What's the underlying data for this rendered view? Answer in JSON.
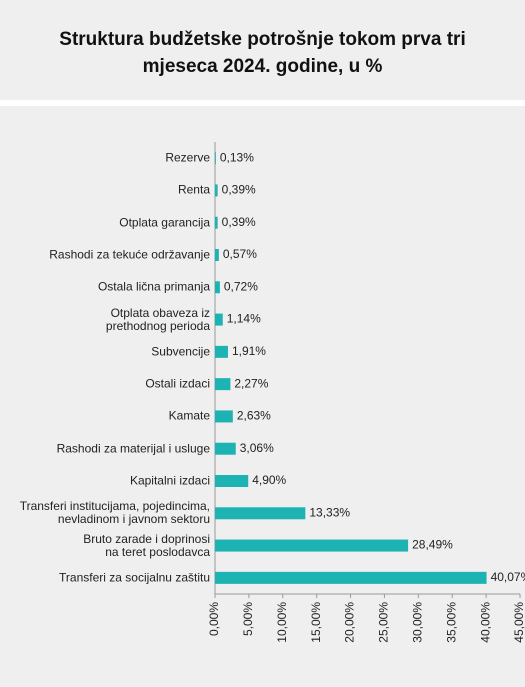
{
  "chart_data": {
    "type": "bar",
    "orientation": "horizontal",
    "title": "Struktura budžetske potrošnje tokom prva tri mjeseca 2024. godine, u %",
    "categories": [
      "Rezerve",
      "Renta",
      "Otplata garancija",
      "Rashodi za tekuće održavanje",
      "Ostala lična primanja",
      "Otplata obaveza iz\nprethodnog perioda",
      "Subvencije",
      "Ostali izdaci",
      "Kamate",
      "Rashodi za materijal i usluge",
      "Kapitalni izdaci",
      "Transferi institucijama, pojedincima,\nnevladinom i javnom sektoru",
      "Bruto zarade i doprinosi\nna teret poslodavca",
      "Transferi za socijalnu zaštitu"
    ],
    "values": [
      0.13,
      0.39,
      0.39,
      0.57,
      0.72,
      1.14,
      1.91,
      2.27,
      2.63,
      3.06,
      4.9,
      13.33,
      28.49,
      40.07
    ],
    "value_labels": [
      "0,13%",
      "0,39%",
      "0,39%",
      "0,57%",
      "0,72%",
      "1,14%",
      "1,91%",
      "2,27%",
      "2,63%",
      "3,06%",
      "4,90%",
      "13,33%",
      "28,49%",
      "40,07%"
    ],
    "color": "#1db3b3",
    "xlim": [
      0,
      45
    ],
    "xticks": [
      {
        "value": 0,
        "label": "0,00%"
      },
      {
        "value": 5,
        "label": "5,00%"
      },
      {
        "value": 10,
        "label": "10,00%"
      },
      {
        "value": 15,
        "label": "15,00%"
      },
      {
        "value": 20,
        "label": "20,00%"
      },
      {
        "value": 25,
        "label": "25,00%"
      },
      {
        "value": 30,
        "label": "30,00%"
      },
      {
        "value": 35,
        "label": "35,00%"
      },
      {
        "value": 40,
        "label": "40,00%"
      },
      {
        "value": 45,
        "label": "45,00%"
      }
    ]
  }
}
